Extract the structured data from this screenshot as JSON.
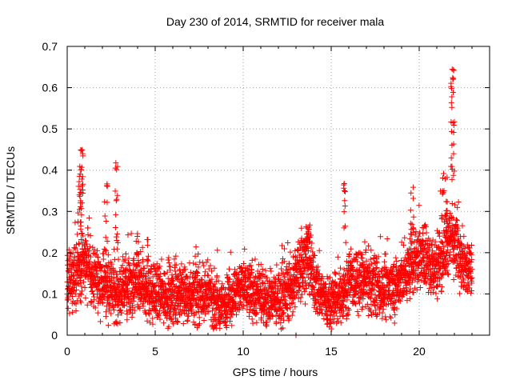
{
  "chart_data": {
    "type": "scatter",
    "title": "Day 230 of 2014, SRMTID for receiver mala",
    "xlabel": "GPS time / hours",
    "ylabel": "SRMTID / TECUs",
    "xlim": [
      0,
      24
    ],
    "ylim": [
      0,
      0.7
    ],
    "xticks": [
      0,
      5,
      10,
      15,
      20
    ],
    "xtick_labels": [
      "0",
      "5",
      "10",
      "15",
      "20"
    ],
    "yticks": [
      0,
      0.1,
      0.2,
      0.3,
      0.4,
      0.5,
      0.6,
      0.7
    ],
    "ytick_labels": [
      "0",
      "0.1",
      "0.2",
      "0.3",
      "0.4",
      "0.5",
      "0.6",
      "0.7"
    ],
    "grid": true,
    "marker": "+",
    "marker_color": "#ff0000",
    "series": [
      {
        "name": "SRMTID",
        "profile_x": [
          0.0,
          0.8,
          1.0,
          1.5,
          2.2,
          2.7,
          3.2,
          4.0,
          5.0,
          6.0,
          7.0,
          8.0,
          8.7,
          9.5,
          10.0,
          11.0,
          12.0,
          12.8,
          13.3,
          13.6,
          14.0,
          14.8,
          15.5,
          16.0,
          17.0,
          18.0,
          18.7,
          19.5,
          20.0,
          20.8,
          21.5,
          22.0,
          22.5,
          23.0
        ],
        "profile_y": [
          0.13,
          0.16,
          0.18,
          0.14,
          0.12,
          0.1,
          0.11,
          0.12,
          0.1,
          0.1,
          0.1,
          0.1,
          0.07,
          0.1,
          0.12,
          0.09,
          0.09,
          0.12,
          0.17,
          0.19,
          0.13,
          0.08,
          0.09,
          0.13,
          0.13,
          0.11,
          0.12,
          0.16,
          0.2,
          0.16,
          0.21,
          0.25,
          0.16,
          0.16
        ],
        "spike_clusters": [
          {
            "x": [
              0.6,
              0.9
            ],
            "y": [
              0.22,
              0.45
            ],
            "n": 40
          },
          {
            "x": [
              2.1,
              2.3
            ],
            "y": [
              0.2,
              0.37
            ],
            "n": 12
          },
          {
            "x": [
              2.7,
              2.9
            ],
            "y": [
              0.2,
              0.42
            ],
            "n": 14
          },
          {
            "x": [
              3.9,
              4.1
            ],
            "y": [
              0.18,
              0.25
            ],
            "n": 10
          },
          {
            "x": [
              4.5,
              4.6
            ],
            "y": [
              0.18,
              0.25
            ],
            "n": 6
          },
          {
            "x": [
              13.3,
              13.8
            ],
            "y": [
              0.2,
              0.28
            ],
            "n": 16
          },
          {
            "x": [
              15.7,
              15.8
            ],
            "y": [
              0.22,
              0.4
            ],
            "n": 10
          },
          {
            "x": [
              19.5,
              19.7
            ],
            "y": [
              0.22,
              0.36
            ],
            "n": 12
          },
          {
            "x": [
              21.2,
              21.6
            ],
            "y": [
              0.25,
              0.4
            ],
            "n": 20
          },
          {
            "x": [
              21.8,
              22.0
            ],
            "y": [
              0.3,
              0.65
            ],
            "n": 30
          }
        ],
        "low_outliers": [
          {
            "x": 13.0,
            "y": 0.0
          },
          {
            "x": 14.9,
            "y": 0.02
          },
          {
            "x": 3.0,
            "y": 0.03
          }
        ]
      }
    ]
  }
}
